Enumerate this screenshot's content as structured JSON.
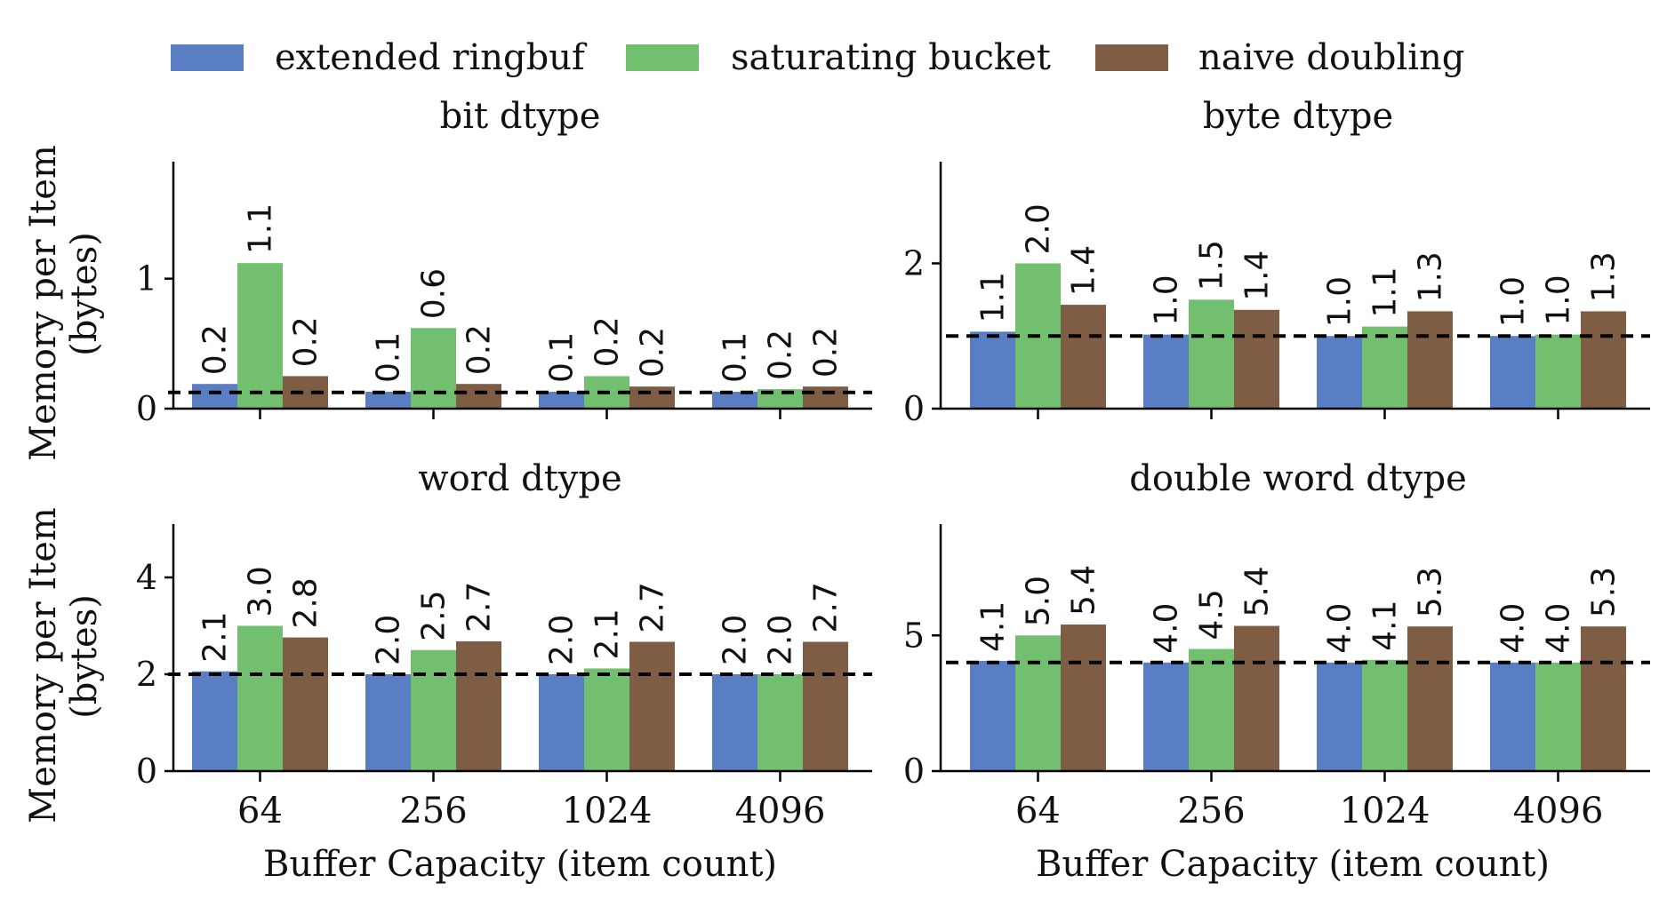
{
  "figure": {
    "legend": [
      {
        "name": "extended ringbuf",
        "color": "#5a7ec3"
      },
      {
        "name": "saturating bucket",
        "color": "#72c06f"
      },
      {
        "name": "naive doubling",
        "color": "#7f5d44"
      }
    ],
    "ylabel_line1": "Memory per Item",
    "ylabel_line2": "(bytes)",
    "xlabel": "Buffer Capacity (item count)"
  },
  "chart_data": [
    {
      "type": "bar",
      "title": "bit dtype",
      "categories": [
        "64",
        "256",
        "1024",
        "4096"
      ],
      "series": [
        {
          "name": "extended ringbuf",
          "values": [
            0.19,
            0.13,
            0.13,
            0.13
          ]
        },
        {
          "name": "saturating bucket",
          "values": [
            1.12,
            0.62,
            0.25,
            0.15
          ]
        },
        {
          "name": "naive doubling",
          "values": [
            0.25,
            0.19,
            0.17,
            0.17
          ]
        }
      ],
      "labels": [
        [
          "0.2",
          "0.1",
          "0.1",
          "0.1"
        ],
        [
          "1.1",
          "0.6",
          "0.2",
          "0.2"
        ],
        [
          "0.2",
          "0.2",
          "0.2",
          "0.2"
        ]
      ],
      "reference_line": 0.125,
      "ylim": [
        0,
        1.9
      ],
      "yticks": [
        0,
        1
      ],
      "show_xticklabels": false,
      "show_xlabel": false,
      "show_ylabel": true
    },
    {
      "type": "bar",
      "title": "byte dtype",
      "categories": [
        "64",
        "256",
        "1024",
        "4096"
      ],
      "series": [
        {
          "name": "extended ringbuf",
          "values": [
            1.06,
            1.02,
            1.0,
            1.0
          ]
        },
        {
          "name": "saturating bucket",
          "values": [
            2.0,
            1.5,
            1.13,
            1.02
          ]
        },
        {
          "name": "naive doubling",
          "values": [
            1.43,
            1.36,
            1.34,
            1.34
          ]
        }
      ],
      "labels": [
        [
          "1.1",
          "1.0",
          "1.0",
          "1.0"
        ],
        [
          "2.0",
          "1.5",
          "1.1",
          "1.0"
        ],
        [
          "1.4",
          "1.4",
          "1.3",
          "1.3"
        ]
      ],
      "reference_line": 1.0,
      "ylim": [
        0,
        3.4
      ],
      "yticks": [
        0,
        2
      ],
      "show_xticklabels": false,
      "show_xlabel": false,
      "show_ylabel": false
    },
    {
      "type": "bar",
      "title": "word dtype",
      "categories": [
        "64",
        "256",
        "1024",
        "4096"
      ],
      "series": [
        {
          "name": "extended ringbuf",
          "values": [
            2.06,
            2.0,
            2.0,
            2.0
          ]
        },
        {
          "name": "saturating bucket",
          "values": [
            3.0,
            2.5,
            2.12,
            2.0
          ]
        },
        {
          "name": "naive doubling",
          "values": [
            2.76,
            2.68,
            2.67,
            2.67
          ]
        }
      ],
      "labels": [
        [
          "2.1",
          "2.0",
          "2.0",
          "2.0"
        ],
        [
          "3.0",
          "2.5",
          "2.1",
          "2.0"
        ],
        [
          "2.8",
          "2.7",
          "2.7",
          "2.7"
        ]
      ],
      "reference_line": 2.0,
      "ylim": [
        0,
        5.1
      ],
      "yticks": [
        0,
        2,
        4
      ],
      "show_xticklabels": true,
      "show_xlabel": true,
      "show_ylabel": true
    },
    {
      "type": "bar",
      "title": "double word dtype",
      "categories": [
        "64",
        "256",
        "1024",
        "4096"
      ],
      "series": [
        {
          "name": "extended ringbuf",
          "values": [
            4.06,
            4.0,
            4.0,
            4.0
          ]
        },
        {
          "name": "saturating bucket",
          "values": [
            5.0,
            4.5,
            4.1,
            4.0
          ]
        },
        {
          "name": "naive doubling",
          "values": [
            5.4,
            5.35,
            5.33,
            5.33
          ]
        }
      ],
      "labels": [
        [
          "4.1",
          "4.0",
          "4.0",
          "4.0"
        ],
        [
          "5.0",
          "4.5",
          "4.1",
          "4.0"
        ],
        [
          "5.4",
          "5.4",
          "5.3",
          "5.3"
        ]
      ],
      "reference_line": 4.0,
      "ylim": [
        0,
        9.1
      ],
      "yticks": [
        0,
        5
      ],
      "show_xticklabels": true,
      "show_xlabel": true,
      "show_ylabel": false
    }
  ]
}
